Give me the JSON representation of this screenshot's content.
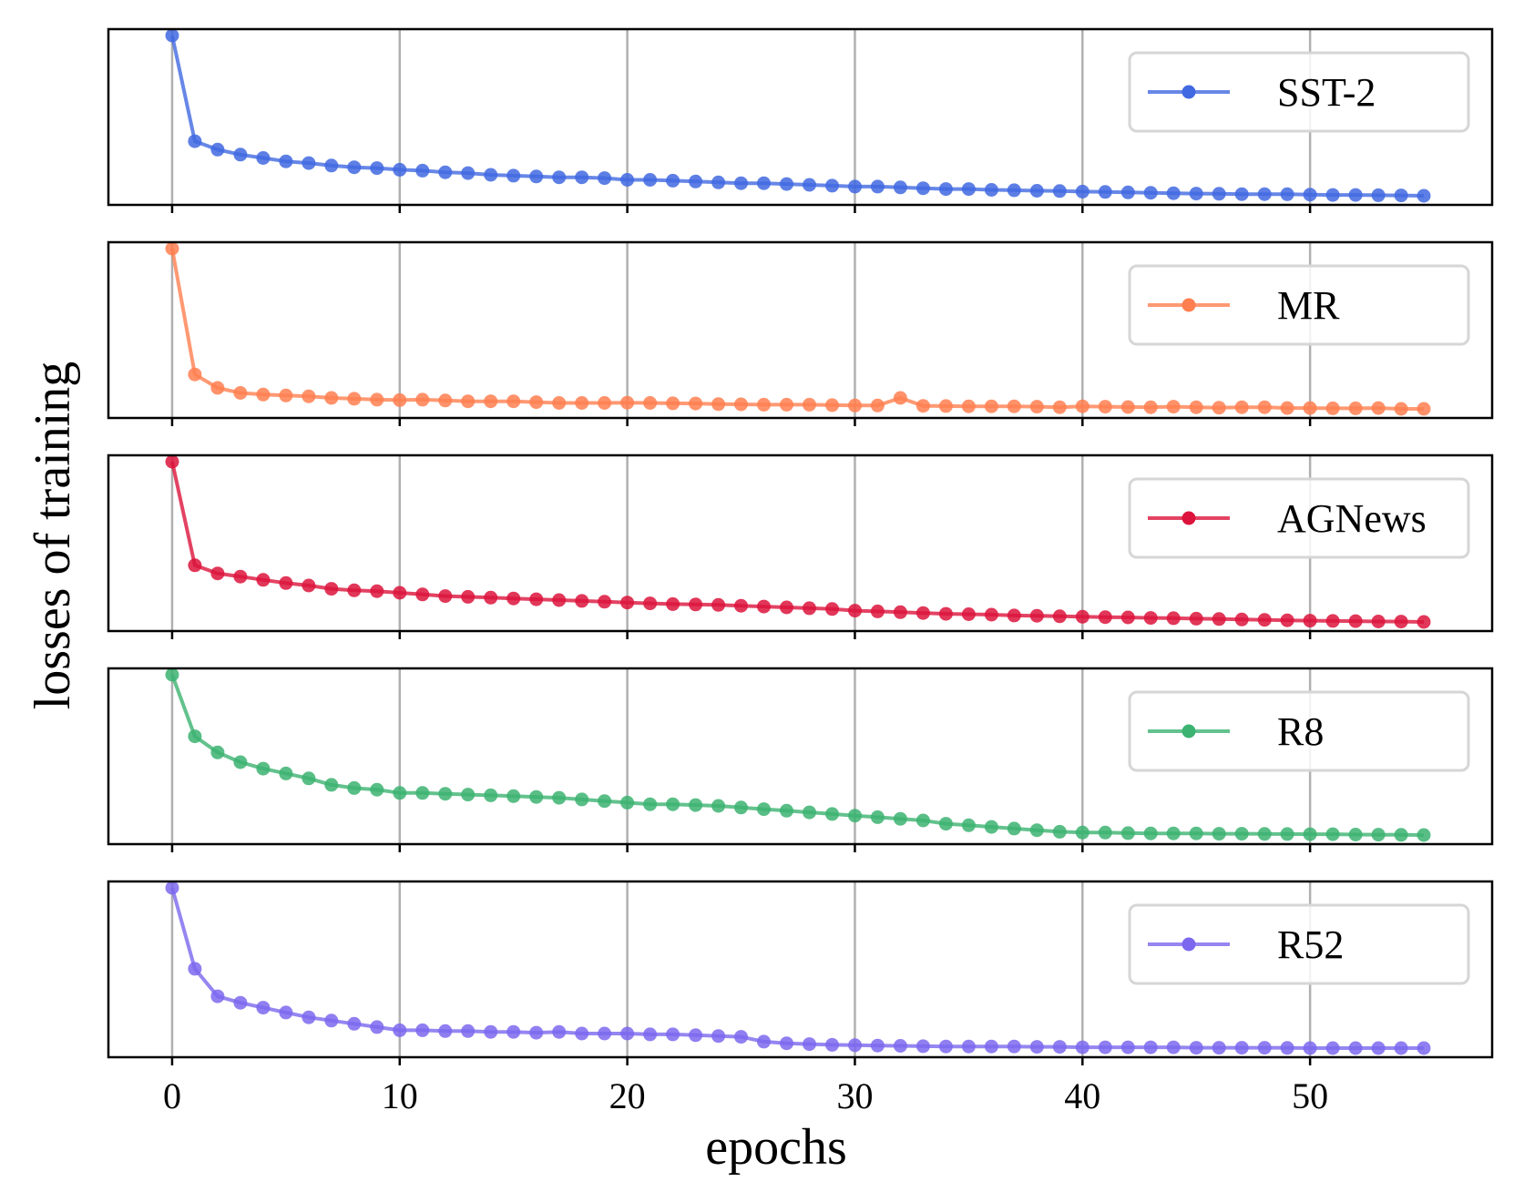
{
  "chart_data": {
    "type": "line",
    "xlabel": "epochs",
    "ylabel": "losses of training",
    "xlim": [
      -2.8,
      58
    ],
    "xticks": [
      0,
      10,
      20,
      30,
      40,
      50
    ],
    "grid": "x",
    "y_tick_labels_shown": false,
    "legend_position": "right",
    "series": [
      {
        "name": "SST-2",
        "color": "#4169e1",
        "y": [
          1.0,
          0.37,
          0.32,
          0.29,
          0.27,
          0.25,
          0.24,
          0.225,
          0.215,
          0.21,
          0.2,
          0.195,
          0.185,
          0.18,
          0.17,
          0.165,
          0.16,
          0.155,
          0.155,
          0.15,
          0.14,
          0.14,
          0.135,
          0.13,
          0.125,
          0.12,
          0.12,
          0.115,
          0.11,
          0.105,
          0.1,
          0.1,
          0.095,
          0.09,
          0.085,
          0.085,
          0.08,
          0.078,
          0.075,
          0.073,
          0.07,
          0.068,
          0.065,
          0.063,
          0.06,
          0.058,
          0.057,
          0.055,
          0.055,
          0.054,
          0.052,
          0.05,
          0.05,
          0.048,
          0.047,
          0.045
        ]
      },
      {
        "name": "MR",
        "color": "#ff7f50",
        "y": [
          1.0,
          0.25,
          0.17,
          0.14,
          0.13,
          0.125,
          0.12,
          0.11,
          0.105,
          0.1,
          0.097,
          0.1,
          0.095,
          0.09,
          0.09,
          0.09,
          0.085,
          0.08,
          0.08,
          0.08,
          0.082,
          0.08,
          0.078,
          0.077,
          0.073,
          0.072,
          0.07,
          0.07,
          0.07,
          0.067,
          0.065,
          0.065,
          0.11,
          0.063,
          0.062,
          0.06,
          0.06,
          0.06,
          0.058,
          0.055,
          0.06,
          0.058,
          0.056,
          0.055,
          0.058,
          0.055,
          0.052,
          0.055,
          0.055,
          0.05,
          0.05,
          0.048,
          0.048,
          0.05,
          0.045,
          0.045
        ]
      },
      {
        "name": "AGNews",
        "color": "#dc143c",
        "y": [
          1.0,
          0.36,
          0.31,
          0.29,
          0.27,
          0.25,
          0.235,
          0.215,
          0.205,
          0.2,
          0.19,
          0.18,
          0.17,
          0.165,
          0.16,
          0.155,
          0.15,
          0.145,
          0.14,
          0.135,
          0.13,
          0.125,
          0.12,
          0.118,
          0.115,
          0.11,
          0.105,
          0.1,
          0.095,
          0.09,
          0.08,
          0.075,
          0.07,
          0.065,
          0.06,
          0.058,
          0.055,
          0.05,
          0.048,
          0.045,
          0.042,
          0.04,
          0.038,
          0.035,
          0.033,
          0.03,
          0.028,
          0.025,
          0.023,
          0.02,
          0.018,
          0.016,
          0.015,
          0.013,
          0.012,
          0.01
        ]
      },
      {
        "name": "R8",
        "color": "#3cb371",
        "y": [
          1.0,
          0.62,
          0.52,
          0.46,
          0.42,
          0.39,
          0.36,
          0.32,
          0.3,
          0.29,
          0.27,
          0.27,
          0.265,
          0.26,
          0.255,
          0.25,
          0.245,
          0.24,
          0.23,
          0.22,
          0.21,
          0.2,
          0.2,
          0.195,
          0.19,
          0.18,
          0.17,
          0.16,
          0.15,
          0.14,
          0.13,
          0.12,
          0.11,
          0.1,
          0.08,
          0.07,
          0.06,
          0.05,
          0.04,
          0.03,
          0.025,
          0.025,
          0.022,
          0.02,
          0.02,
          0.02,
          0.018,
          0.018,
          0.017,
          0.016,
          0.015,
          0.015,
          0.013,
          0.012,
          0.011,
          0.01
        ]
      },
      {
        "name": "R52",
        "color": "#7b68ee",
        "y": [
          1.0,
          0.5,
          0.33,
          0.29,
          0.26,
          0.23,
          0.2,
          0.18,
          0.16,
          0.14,
          0.12,
          0.12,
          0.115,
          0.115,
          0.11,
          0.11,
          0.105,
          0.11,
          0.1,
          0.1,
          0.1,
          0.095,
          0.095,
          0.09,
          0.085,
          0.08,
          0.05,
          0.04,
          0.035,
          0.03,
          0.028,
          0.026,
          0.024,
          0.022,
          0.02,
          0.02,
          0.02,
          0.02,
          0.018,
          0.018,
          0.015,
          0.015,
          0.015,
          0.015,
          0.015,
          0.012,
          0.012,
          0.012,
          0.012,
          0.011,
          0.01,
          0.01,
          0.01,
          0.01,
          0.01,
          0.01
        ]
      }
    ]
  }
}
